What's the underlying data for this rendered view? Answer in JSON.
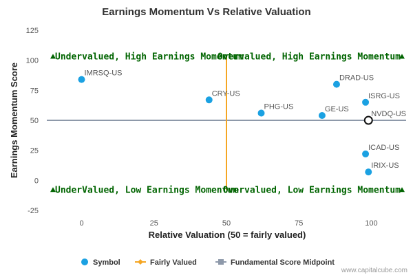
{
  "chart_data": {
    "type": "scatter",
    "title": "Earnings Momentum Vs Relative Valuation",
    "xlabel": "Relative Valuation (50 = fairly valued)",
    "ylabel": "Earnings Momentum Score",
    "xlim": [
      -12,
      112
    ],
    "ylim": [
      -25,
      125
    ],
    "xticks": [
      "0",
      "25",
      "50",
      "75",
      "100"
    ],
    "xtick_values": [
      0,
      25,
      50,
      75,
      100
    ],
    "yticks": [
      "125",
      "100",
      "75",
      "50",
      "25",
      "0",
      "-25"
    ],
    "ytick_values": [
      125,
      100,
      75,
      50,
      25,
      0,
      -25
    ],
    "grid": false,
    "legend_position": "bottom",
    "series": [
      {
        "name": "Symbol",
        "color": "#1ba1e2",
        "points": [
          {
            "label": "IMRSQ-US",
            "x": 0,
            "y": 84
          },
          {
            "label": "CRY-US",
            "x": 44,
            "y": 67
          },
          {
            "label": "PHG-US",
            "x": 62,
            "y": 56
          },
          {
            "label": "DRAD-US",
            "x": 88,
            "y": 80
          },
          {
            "label": "ISRG-US",
            "x": 98,
            "y": 65
          },
          {
            "label": "GE-US",
            "x": 83,
            "y": 54
          },
          {
            "label": "NVDQ-US",
            "x": 99,
            "y": 50,
            "highlight": true
          },
          {
            "label": "ICAD-US",
            "x": 98,
            "y": 22
          },
          {
            "label": "IRIX-US",
            "x": 99,
            "y": 7
          }
        ]
      },
      {
        "name": "Fairly Valued",
        "color": "#f5a623",
        "x_value": 50
      },
      {
        "name": "Fundamental Score Midpoint",
        "color": "#8e99aa",
        "y_value": 50
      }
    ],
    "quadrants": {
      "top_left": "Undervalued, High Earnings Momentum",
      "top_right": "Overvalued, High Earnings Momentum",
      "bottom_left": "UnderValued, Low Earnings Momentum",
      "bottom_right": "Overvalued, Low Earnings Momentum"
    },
    "quadrant_color": "#006400"
  },
  "credit": "www.capitalcube.com"
}
